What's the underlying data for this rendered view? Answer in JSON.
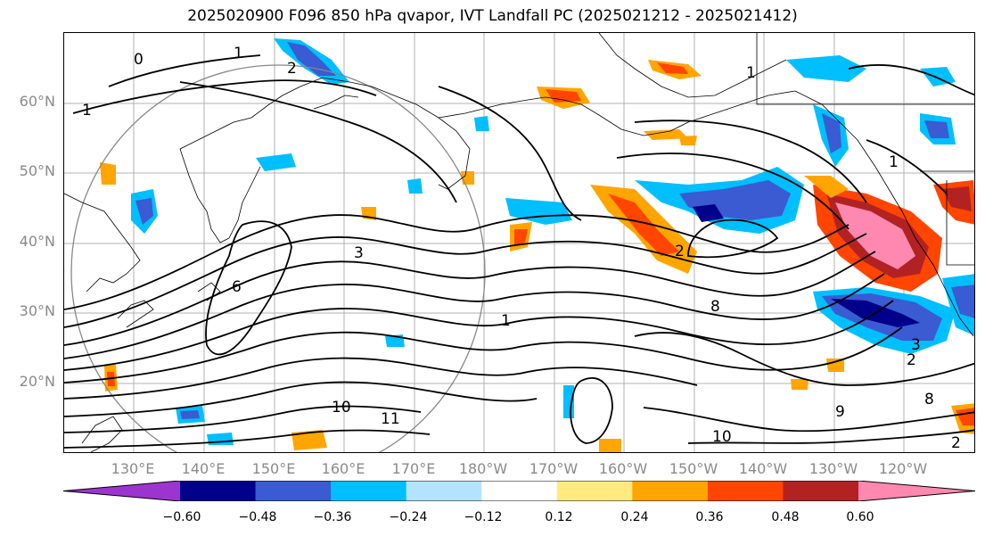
{
  "title": "2025020900 F096 850 hPa qvapor, IVT Landfall PC (2025021212 - 2025021412)",
  "axes": {
    "lat_labels": [
      "60°N",
      "50°N",
      "40°N",
      "30°N",
      "20°N"
    ],
    "lon_labels": [
      "130°E",
      "140°E",
      "150°E",
      "160°E",
      "170°E",
      "180°W",
      "170°W",
      "160°W",
      "150°W",
      "140°W",
      "130°W",
      "120°W"
    ]
  },
  "contour_labels": [
    "0",
    "1",
    "1",
    "1",
    "2",
    "2",
    "3",
    "6",
    "8",
    "9",
    "10",
    "10",
    "11",
    "8",
    "3",
    "2",
    "1",
    "1",
    "2"
  ],
  "colorbar": {
    "ticks": [
      "−0.60",
      "−0.48",
      "−0.36",
      "−0.24",
      "−0.12",
      "0.12",
      "0.24",
      "0.36",
      "0.48",
      "0.60"
    ],
    "colors": [
      "#9c35cf",
      "#00008b",
      "#3a5bd1",
      "#00bfff",
      "#b3e4ff",
      "#ffffff",
      "#ffea80",
      "#ffa500",
      "#ff4500",
      "#b22222",
      "#ff88b0"
    ]
  }
}
